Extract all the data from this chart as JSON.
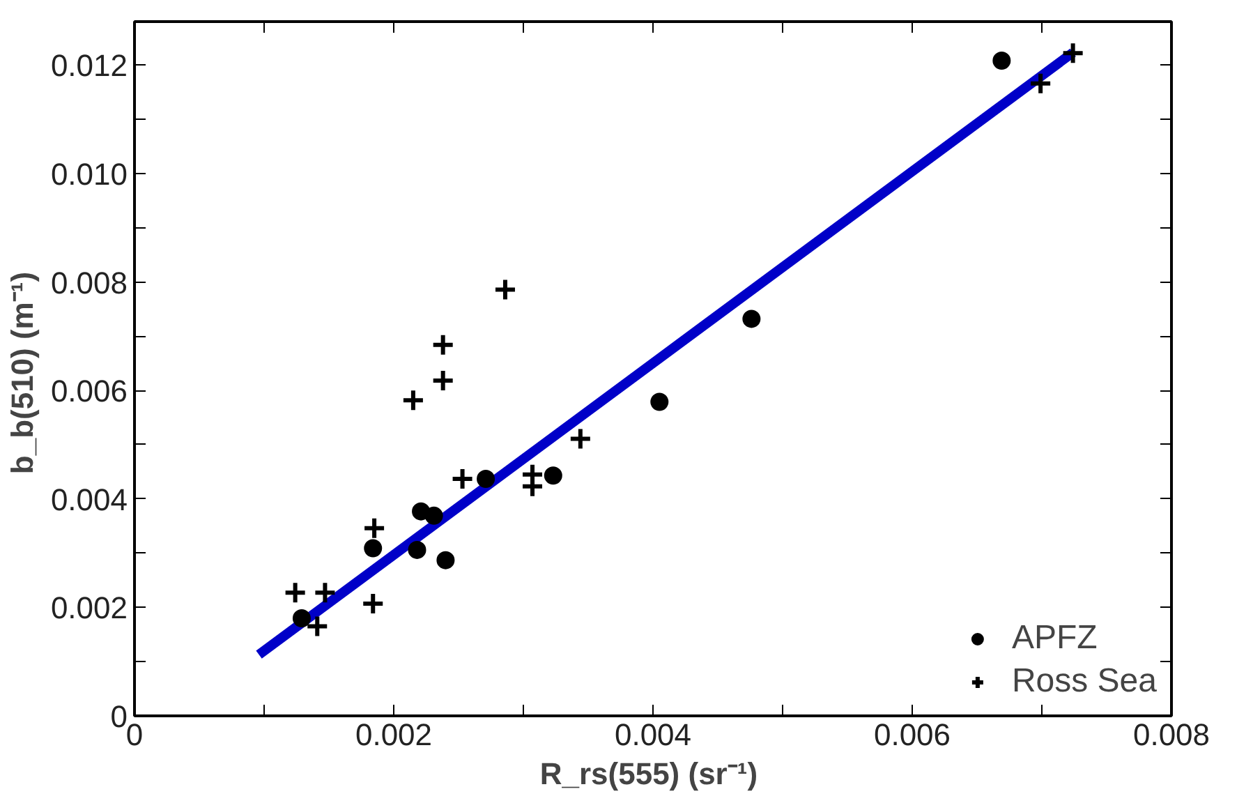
{
  "chart_data": {
    "type": "scatter",
    "xlabel": "R_rs(555)  (sr⁻¹)",
    "ylabel": "b_b(510)  (m⁻¹)",
    "xlim": [
      0,
      0.008
    ],
    "ylim": [
      0,
      0.0128
    ],
    "xticks": [
      0,
      {
        "value": 0.001,
        "label": null
      },
      0.002,
      {
        "value": 0.003,
        "label": null
      },
      0.004,
      {
        "value": 0.005,
        "label": null
      },
      0.006,
      {
        "value": 0.007,
        "label": null
      },
      0.008
    ],
    "yticks": [
      0,
      {
        "value": 0.001,
        "label": null
      },
      0.002,
      {
        "value": 0.003,
        "label": null
      },
      0.004,
      {
        "value": 0.005,
        "label": null
      },
      0.006,
      {
        "value": 0.007,
        "label": null
      },
      0.008,
      {
        "value": 0.009,
        "label": null
      },
      "0.010",
      {
        "value": 0.011,
        "label": null
      },
      0.012
    ],
    "grid": false,
    "legend": "bottom right",
    "series": [
      {
        "type": "line",
        "color": "#0000c8",
        "marker": "none",
        "x": [
          0.00096,
          0.00724
        ],
        "values": [
          0.00113,
          0.01223
        ]
      },
      {
        "name": "APFZ",
        "color": "#000000",
        "marker": "circle",
        "x": [
          0.00669,
          0.00476,
          0.00405,
          0.00323,
          0.00271,
          0.00221,
          0.00231,
          0.00218,
          0.0024,
          0.00184,
          0.00129
        ],
        "values": [
          0.01208,
          0.00732,
          0.00579,
          0.00443,
          0.00437,
          0.00377,
          0.00369,
          0.00306,
          0.00287,
          0.00309,
          0.0018
        ]
      },
      {
        "name": "Ross Sea",
        "color": "#000000",
        "marker": "cross",
        "x": [
          0.00286,
          0.00238,
          0.00238,
          0.00215,
          0.00344,
          0.00253,
          0.00307,
          0.00307,
          0.00185,
          0.00184,
          0.00124,
          0.00147,
          0.00141,
          0.00724,
          0.00699
        ],
        "values": [
          0.00786,
          0.00684,
          0.00618,
          0.00582,
          0.00511,
          0.00437,
          0.00445,
          0.00423,
          0.00346,
          0.00207,
          0.00227,
          0.00227,
          0.00165,
          0.01222,
          0.01166
        ]
      }
    ]
  }
}
